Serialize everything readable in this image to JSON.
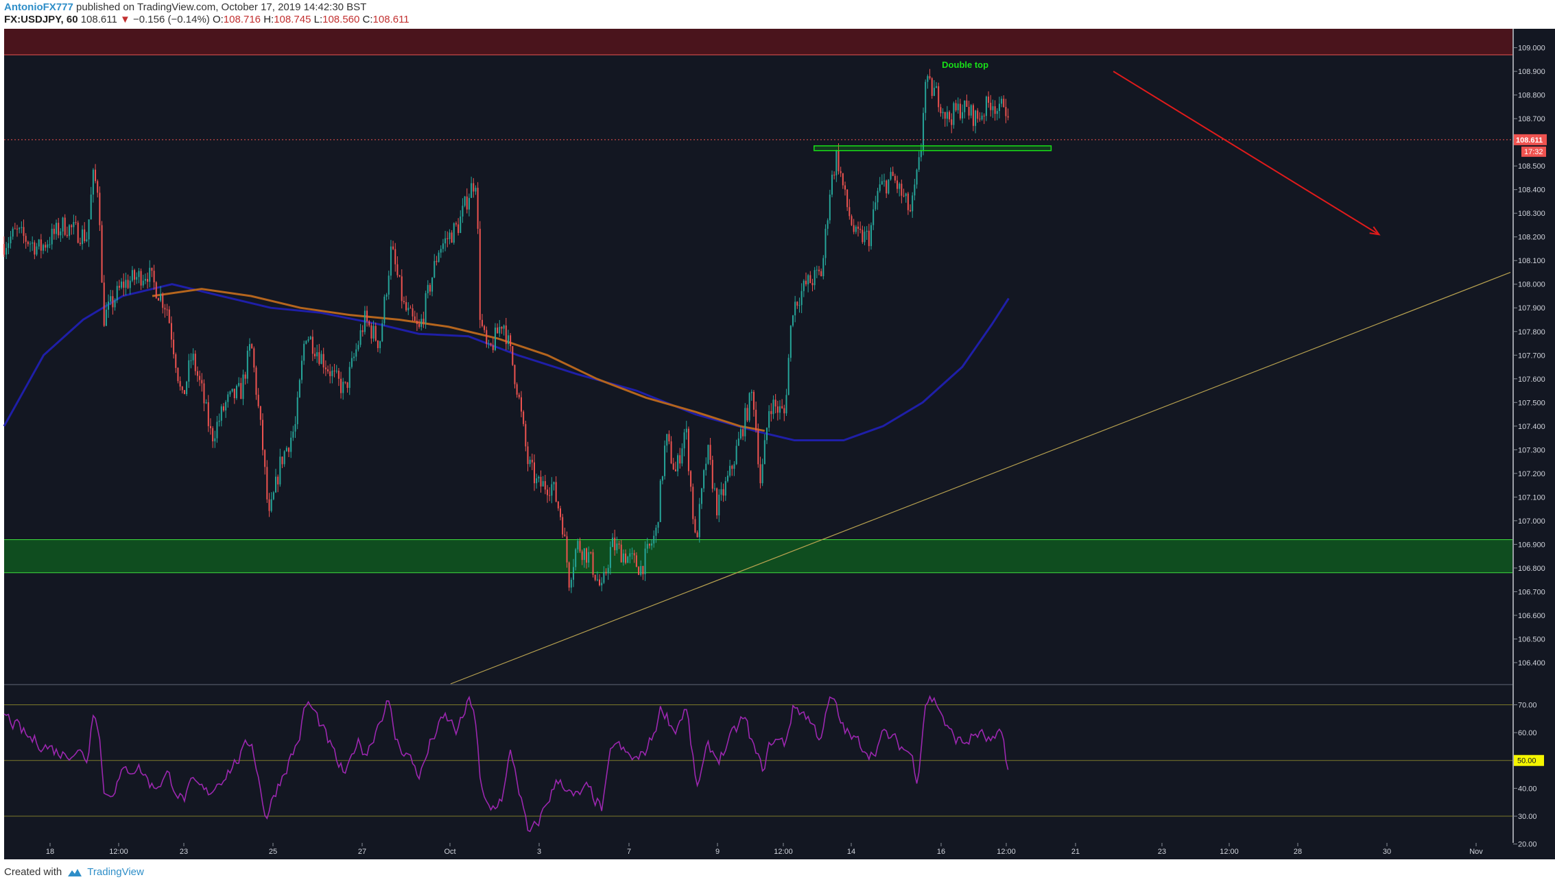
{
  "header": {
    "author": "AntonioFX777",
    "published_text": "published on TradingView.com, October 17, 2019 14:42:30 BST",
    "symbol": "FX:USDJPY, 60",
    "last_price": "108.611",
    "change_arrow": "▼",
    "change": "−0.156 (−0.14%)",
    "open_label": "O:",
    "open": "108.716",
    "high_label": "H:",
    "high": "108.745",
    "low_label": "L:",
    "low": "108.560",
    "close_label": "C:",
    "close": "108.611"
  },
  "footer": {
    "created_with": "Created with",
    "brand": "TradingView"
  },
  "colors": {
    "background": "#131722",
    "candle_up": "#26a69a",
    "candle_down": "#ef5350",
    "ma_fast": "#1f1fa8",
    "ma_slow": "#b5651d",
    "rsi": "#9c27b0",
    "resistance_zone": "#4a141c",
    "support_zone": "#0f4d1f",
    "trendline": "#b8a250",
    "arrow": "#e01b1b",
    "annotation": "#18e018",
    "price_label_bg": "#ef5350",
    "rsi_label_bg": "#f5f500"
  },
  "chart_data": {
    "type": "candlestick",
    "symbol": "USDJPY",
    "timeframe": "60",
    "price_axis": {
      "ylim": [
        106.31,
        109.08
      ],
      "ticks": [
        "109.000",
        "108.900",
        "108.800",
        "108.700",
        "108.600",
        "108.500",
        "108.400",
        "108.300",
        "108.200",
        "108.100",
        "108.000",
        "107.900",
        "107.800",
        "107.700",
        "107.600",
        "107.500",
        "107.400",
        "107.300",
        "107.200",
        "107.100",
        "107.000",
        "106.900",
        "106.800",
        "106.700",
        "106.600",
        "106.500",
        "106.400"
      ]
    },
    "time_axis": {
      "ticks": [
        "18",
        "12:00",
        "23",
        "25",
        "27",
        "Oct",
        "3",
        "7",
        "9",
        "12:00",
        "14",
        "16",
        "12:00",
        "21",
        "23",
        "12:00",
        "28",
        "30",
        "Nov"
      ]
    },
    "price_path": [
      [
        0,
        108.17
      ],
      [
        12,
        108.22
      ],
      [
        36,
        108.15
      ],
      [
        60,
        108.25
      ],
      [
        84,
        108.2
      ],
      [
        90,
        108.45
      ],
      [
        96,
        108.4
      ],
      [
        100,
        107.85
      ],
      [
        120,
        108.0
      ],
      [
        145,
        108.05
      ],
      [
        165,
        107.9
      ],
      [
        175,
        107.65
      ],
      [
        180,
        107.5
      ],
      [
        190,
        107.7
      ],
      [
        200,
        107.55
      ],
      [
        210,
        107.35
      ],
      [
        225,
        107.5
      ],
      [
        240,
        107.55
      ],
      [
        250,
        107.75
      ],
      [
        262,
        107.3
      ],
      [
        268,
        107.0
      ],
      [
        280,
        107.25
      ],
      [
        295,
        107.4
      ],
      [
        305,
        107.8
      ],
      [
        320,
        107.7
      ],
      [
        335,
        107.6
      ],
      [
        345,
        107.55
      ],
      [
        355,
        107.7
      ],
      [
        365,
        107.85
      ],
      [
        380,
        107.75
      ],
      [
        392,
        108.15
      ],
      [
        405,
        107.9
      ],
      [
        420,
        107.8
      ],
      [
        440,
        108.15
      ],
      [
        460,
        108.25
      ],
      [
        472,
        108.4
      ],
      [
        478,
        108.45
      ],
      [
        482,
        107.85
      ],
      [
        490,
        107.7
      ],
      [
        505,
        107.85
      ],
      [
        513,
        107.7
      ],
      [
        520,
        107.55
      ],
      [
        530,
        107.25
      ],
      [
        540,
        107.15
      ],
      [
        555,
        107.15
      ],
      [
        565,
        107.0
      ],
      [
        572,
        106.75
      ],
      [
        580,
        106.9
      ],
      [
        592,
        106.85
      ],
      [
        605,
        106.7
      ],
      [
        615,
        106.9
      ],
      [
        630,
        106.85
      ],
      [
        645,
        106.8
      ],
      [
        660,
        106.95
      ],
      [
        670,
        107.35
      ],
      [
        680,
        107.2
      ],
      [
        690,
        107.4
      ],
      [
        700,
        106.9
      ],
      [
        712,
        107.3
      ],
      [
        722,
        107.05
      ],
      [
        735,
        107.2
      ],
      [
        748,
        107.4
      ],
      [
        758,
        107.55
      ],
      [
        766,
        107.15
      ],
      [
        775,
        107.5
      ],
      [
        790,
        107.45
      ],
      [
        798,
        107.9
      ],
      [
        812,
        108.0
      ],
      [
        828,
        108.05
      ],
      [
        836,
        108.4
      ],
      [
        843,
        108.55
      ],
      [
        852,
        108.35
      ],
      [
        862,
        108.2
      ],
      [
        876,
        108.2
      ],
      [
        885,
        108.4
      ],
      [
        900,
        108.45
      ],
      [
        918,
        108.3
      ],
      [
        928,
        108.55
      ],
      [
        932,
        108.85
      ],
      [
        945,
        108.8
      ],
      [
        955,
        108.7
      ],
      [
        970,
        108.75
      ],
      [
        985,
        108.7
      ],
      [
        1000,
        108.78
      ],
      [
        1008,
        108.72
      ],
      [
        1013,
        108.8
      ],
      [
        1018,
        108.611
      ]
    ],
    "moving_averages": [
      {
        "name": "fast",
        "color": "#1f1fa8",
        "points": [
          [
            0,
            107.4
          ],
          [
            40,
            107.7
          ],
          [
            80,
            107.85
          ],
          [
            120,
            107.95
          ],
          [
            170,
            108.0
          ],
          [
            220,
            107.95
          ],
          [
            270,
            107.9
          ],
          [
            320,
            107.88
          ],
          [
            380,
            107.83
          ],
          [
            420,
            107.79
          ],
          [
            470,
            107.78
          ],
          [
            520,
            107.7
          ],
          [
            580,
            107.62
          ],
          [
            640,
            107.55
          ],
          [
            700,
            107.45
          ],
          [
            760,
            107.38
          ],
          [
            800,
            107.34
          ],
          [
            850,
            107.34
          ],
          [
            890,
            107.4
          ],
          [
            930,
            107.5
          ],
          [
            970,
            107.65
          ],
          [
            1000,
            107.83
          ],
          [
            1017,
            107.94
          ]
        ]
      },
      {
        "name": "slow",
        "color": "#b5651d",
        "points": [
          [
            150,
            107.95
          ],
          [
            200,
            107.98
          ],
          [
            250,
            107.95
          ],
          [
            300,
            107.9
          ],
          [
            350,
            107.87
          ],
          [
            400,
            107.85
          ],
          [
            450,
            107.82
          ],
          [
            500,
            107.77
          ],
          [
            550,
            107.7
          ],
          [
            600,
            107.6
          ],
          [
            650,
            107.52
          ],
          [
            700,
            107.46
          ],
          [
            745,
            107.4
          ],
          [
            770,
            107.38
          ]
        ]
      }
    ],
    "zones": [
      {
        "type": "resistance",
        "from": 108.97,
        "to": 109.08
      },
      {
        "type": "support",
        "from": 106.78,
        "to": 106.92
      }
    ],
    "neckline": {
      "x": [
        820,
        1060
      ],
      "from": 108.565,
      "to": 108.585
    },
    "trendline": {
      "points": [
        [
          452,
          106.31
        ],
        [
          1525,
          108.05
        ]
      ]
    },
    "arrow": {
      "from": [
        1123,
        108.9
      ],
      "to": [
        1392,
        108.21
      ]
    },
    "current_price_line": 108.611,
    "annotations": [
      {
        "text": "Double top",
        "x": 973,
        "y": 108.915
      }
    ],
    "price_label": "108.611",
    "countdown_label": "17:32",
    "rsi": {
      "ylim": [
        15,
        77
      ],
      "levels": [
        70,
        50,
        30
      ],
      "ticks": [
        "70.00",
        "60.00",
        "50.00",
        "40.00",
        "30.00",
        "20.00"
      ],
      "current_label": "50.00",
      "path": [
        [
          0,
          66
        ],
        [
          12,
          62
        ],
        [
          24,
          58
        ],
        [
          36,
          56
        ],
        [
          48,
          54
        ],
        [
          60,
          52
        ],
        [
          72,
          54
        ],
        [
          84,
          50
        ],
        [
          90,
          72
        ],
        [
          96,
          60
        ],
        [
          100,
          35
        ],
        [
          110,
          40
        ],
        [
          120,
          46
        ],
        [
          135,
          48
        ],
        [
          150,
          40
        ],
        [
          165,
          45
        ],
        [
          180,
          35
        ],
        [
          190,
          42
        ],
        [
          205,
          38
        ],
        [
          220,
          44
        ],
        [
          235,
          50
        ],
        [
          250,
          58
        ],
        [
          258,
          40
        ],
        [
          265,
          28
        ],
        [
          272,
          38
        ],
        [
          285,
          48
        ],
        [
          298,
          58
        ],
        [
          305,
          72
        ],
        [
          315,
          66
        ],
        [
          328,
          56
        ],
        [
          338,
          48
        ],
        [
          346,
          44
        ],
        [
          356,
          58
        ],
        [
          366,
          52
        ],
        [
          376,
          62
        ],
        [
          388,
          72
        ],
        [
          396,
          56
        ],
        [
          408,
          52
        ],
        [
          420,
          44
        ],
        [
          432,
          58
        ],
        [
          446,
          66
        ],
        [
          458,
          60
        ],
        [
          470,
          72
        ],
        [
          476,
          68
        ],
        [
          482,
          36
        ],
        [
          492,
          32
        ],
        [
          505,
          38
        ],
        [
          512,
          55
        ],
        [
          520,
          40
        ],
        [
          530,
          22
        ],
        [
          540,
          28
        ],
        [
          552,
          38
        ],
        [
          562,
          44
        ],
        [
          575,
          36
        ],
        [
          590,
          40
        ],
        [
          605,
          32
        ],
        [
          615,
          58
        ],
        [
          628,
          52
        ],
        [
          642,
          50
        ],
        [
          655,
          58
        ],
        [
          665,
          70
        ],
        [
          678,
          60
        ],
        [
          690,
          70
        ],
        [
          700,
          38
        ],
        [
          712,
          56
        ],
        [
          722,
          50
        ],
        [
          735,
          58
        ],
        [
          748,
          66
        ],
        [
          758,
          54
        ],
        [
          767,
          46
        ],
        [
          776,
          58
        ],
        [
          790,
          56
        ],
        [
          798,
          70
        ],
        [
          812,
          66
        ],
        [
          825,
          58
        ],
        [
          837,
          74
        ],
        [
          845,
          64
        ],
        [
          856,
          58
        ],
        [
          866,
          56
        ],
        [
          878,
          52
        ],
        [
          890,
          60
        ],
        [
          904,
          56
        ],
        [
          918,
          52
        ],
        [
          924,
          42
        ],
        [
          932,
          74
        ],
        [
          945,
          70
        ],
        [
          955,
          60
        ],
        [
          970,
          56
        ],
        [
          985,
          60
        ],
        [
          1000,
          56
        ],
        [
          1010,
          60
        ],
        [
          1018,
          40
        ]
      ]
    }
  }
}
